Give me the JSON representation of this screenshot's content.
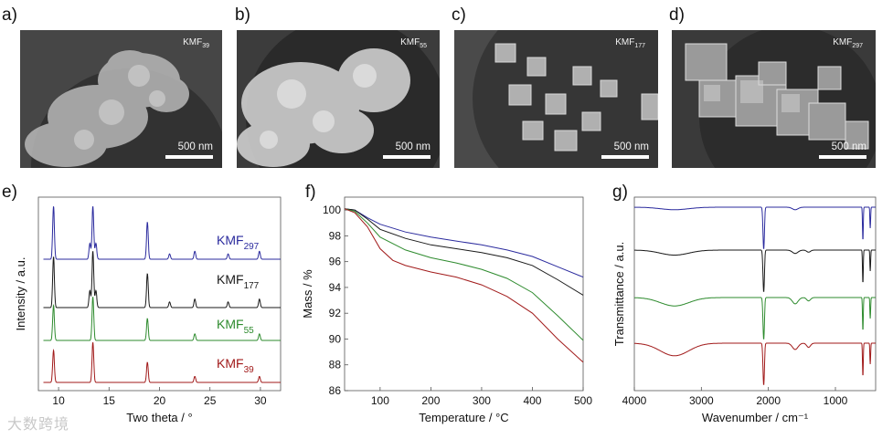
{
  "sem_panels": [
    {
      "letter": "a)",
      "sample": "KMF",
      "sub": "39",
      "scale": "500 nm"
    },
    {
      "letter": "b)",
      "sample": "KMF",
      "sub": "55",
      "scale": "500 nm"
    },
    {
      "letter": "c)",
      "sample": "KMF",
      "sub": "177",
      "scale": "500 nm"
    },
    {
      "letter": "d)",
      "sample": "KMF",
      "sub": "297",
      "scale": "500 nm"
    }
  ],
  "watermark": "大数跨境",
  "colors": {
    "KMF297": "#2b2b9e",
    "KMF177": "#1a1a1a",
    "KMF55": "#2e8b2e",
    "KMF39": "#a11a1a"
  },
  "chart_data": [
    {
      "panel": "e)",
      "type": "line",
      "xlabel": "Two theta / °",
      "ylabel": "Intensity / a.u.",
      "xlim": [
        8,
        32
      ],
      "xticks": [
        10,
        15,
        20,
        25,
        30
      ],
      "series": [
        {
          "name": "KMF",
          "sub": "297",
          "color": "#2b2b9e",
          "peaks": [
            [
              9.5,
              1.0
            ],
            [
              13.1,
              0.3
            ],
            [
              13.4,
              1.0
            ],
            [
              13.7,
              0.3
            ],
            [
              18.8,
              0.7
            ],
            [
              21.0,
              0.1
            ],
            [
              23.5,
              0.15
            ],
            [
              26.8,
              0.1
            ],
            [
              29.9,
              0.15
            ]
          ]
        },
        {
          "name": "KMF",
          "sub": "177",
          "color": "#1a1a1a",
          "peaks": [
            [
              9.5,
              0.9
            ],
            [
              13.1,
              0.3
            ],
            [
              13.4,
              1.0
            ],
            [
              13.7,
              0.3
            ],
            [
              18.8,
              0.6
            ],
            [
              21.0,
              0.1
            ],
            [
              23.5,
              0.15
            ],
            [
              26.8,
              0.1
            ],
            [
              29.9,
              0.15
            ]
          ]
        },
        {
          "name": "KMF",
          "sub": "55",
          "color": "#2e8b2e",
          "peaks": [
            [
              9.5,
              0.8
            ],
            [
              13.4,
              1.0
            ],
            [
              18.8,
              0.5
            ],
            [
              23.5,
              0.15
            ],
            [
              29.9,
              0.15
            ]
          ]
        },
        {
          "name": "KMF",
          "sub": "39",
          "color": "#a11a1a",
          "peaks": [
            [
              9.5,
              0.8
            ],
            [
              13.4,
              1.0
            ],
            [
              18.8,
              0.5
            ],
            [
              23.5,
              0.15
            ],
            [
              29.9,
              0.15
            ]
          ]
        }
      ]
    },
    {
      "panel": "f)",
      "type": "line",
      "xlabel": "Temperature / °C",
      "ylabel": "Mass / %",
      "xlim": [
        30,
        500
      ],
      "ylim": [
        86,
        101
      ],
      "xticks": [
        100,
        200,
        300,
        400,
        500
      ],
      "yticks": [
        86,
        88,
        90,
        92,
        94,
        96,
        98,
        100
      ],
      "series": [
        {
          "name": "KMF297",
          "color": "#2b2b9e",
          "x": [
            30,
            50,
            75,
            100,
            150,
            200,
            250,
            300,
            350,
            400,
            450,
            500
          ],
          "y": [
            100.1,
            100.0,
            99.4,
            98.9,
            98.3,
            97.9,
            97.6,
            97.3,
            96.9,
            96.4,
            95.6,
            94.8
          ]
        },
        {
          "name": "KMF177",
          "color": "#1a1a1a",
          "x": [
            30,
            50,
            75,
            100,
            150,
            200,
            250,
            300,
            350,
            400,
            450,
            500
          ],
          "y": [
            100.1,
            100.0,
            99.3,
            98.5,
            97.8,
            97.3,
            97.0,
            96.7,
            96.3,
            95.7,
            94.6,
            93.4
          ]
        },
        {
          "name": "KMF55",
          "color": "#2e8b2e",
          "x": [
            30,
            50,
            75,
            100,
            150,
            200,
            250,
            300,
            350,
            400,
            450,
            500
          ],
          "y": [
            100.1,
            99.9,
            99.0,
            97.9,
            96.9,
            96.3,
            95.9,
            95.4,
            94.7,
            93.6,
            91.8,
            89.9
          ]
        },
        {
          "name": "KMF39",
          "color": "#a11a1a",
          "x": [
            30,
            50,
            75,
            100,
            125,
            150,
            200,
            250,
            300,
            350,
            400,
            450,
            500
          ],
          "y": [
            100.1,
            99.8,
            98.7,
            97.0,
            96.1,
            95.7,
            95.2,
            94.8,
            94.2,
            93.3,
            92.0,
            90.0,
            88.2
          ]
        }
      ]
    },
    {
      "panel": "g)",
      "type": "line",
      "xlabel": "Wavenumber / cm⁻¹",
      "ylabel": "Transmittance / a.u.",
      "xlim": [
        4000,
        400
      ],
      "xticks": [
        4000,
        3000,
        2000,
        1000
      ],
      "series": [
        {
          "name": "KMF297",
          "color": "#2b2b9e",
          "bands": [
            [
              3400,
              0.06,
              300
            ],
            [
              2070,
              1.0,
              15
            ],
            [
              1600,
              0.06,
              60
            ],
            [
              590,
              0.8,
              8
            ],
            [
              480,
              0.5,
              8
            ]
          ]
        },
        {
          "name": "KMF177",
          "color": "#1a1a1a",
          "bands": [
            [
              3400,
              0.12,
              300
            ],
            [
              2070,
              1.0,
              15
            ],
            [
              1600,
              0.08,
              60
            ],
            [
              1400,
              0.05,
              40
            ],
            [
              590,
              0.8,
              8
            ],
            [
              480,
              0.5,
              8
            ]
          ]
        },
        {
          "name": "KMF55",
          "color": "#2e8b2e",
          "bands": [
            [
              3400,
              0.2,
              300
            ],
            [
              2070,
              1.0,
              15
            ],
            [
              1600,
              0.15,
              60
            ],
            [
              1400,
              0.08,
              40
            ],
            [
              590,
              0.8,
              8
            ],
            [
              480,
              0.5,
              8
            ]
          ]
        },
        {
          "name": "KMF39",
          "color": "#a11a1a",
          "bands": [
            [
              3400,
              0.3,
              300
            ],
            [
              2070,
              1.0,
              15
            ],
            [
              1600,
              0.15,
              60
            ],
            [
              1400,
              0.1,
              40
            ],
            [
              590,
              0.8,
              8
            ],
            [
              480,
              0.5,
              8
            ]
          ]
        }
      ]
    }
  ]
}
